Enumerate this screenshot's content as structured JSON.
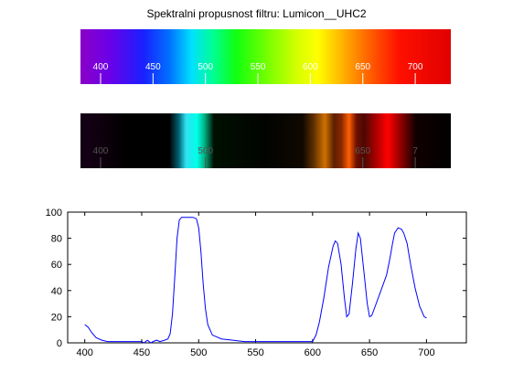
{
  "title": "Spektralni propusnost filtru: Lumicon__UHC2",
  "spectrum_ticks": [
    "400",
    "450",
    "500",
    "550",
    "600",
    "650",
    "700"
  ],
  "filtered_ticks": [
    "400",
    "500",
    "650",
    "7"
  ],
  "chart_data": {
    "type": "line",
    "title": "Spektralni propusnost filtru: Lumicon__UHC2",
    "xlabel": "",
    "ylabel": "",
    "xlim": [
      385,
      735
    ],
    "ylim": [
      0,
      100
    ],
    "xticks": [
      400,
      450,
      500,
      550,
      600,
      650,
      700
    ],
    "yticks": [
      0,
      20,
      40,
      60,
      80,
      100
    ],
    "grid": false,
    "series": [
      {
        "color": "#0000ff",
        "x": [
          400,
          403,
          406,
          410,
          415,
          420,
          430,
          440,
          450,
          452,
          455,
          458,
          460,
          463,
          466,
          470,
          473,
          475,
          477,
          479,
          481,
          483,
          485,
          490,
          495,
          498,
          500,
          502,
          504,
          506,
          508,
          512,
          520,
          530,
          540,
          550,
          560,
          570,
          580,
          590,
          600,
          603,
          606,
          610,
          614,
          618,
          620,
          622,
          625,
          628,
          630,
          632,
          635,
          638,
          640,
          642,
          645,
          648,
          650,
          652,
          655,
          660,
          665,
          668,
          670,
          672,
          675,
          678,
          680,
          683,
          686,
          690,
          694,
          698,
          700
        ],
        "y": [
          14,
          12,
          8,
          4,
          2,
          1,
          1,
          1,
          1,
          0,
          2,
          0,
          1,
          2,
          1,
          2,
          3,
          7,
          22,
          50,
          80,
          94,
          96,
          96,
          96,
          95,
          88,
          70,
          45,
          26,
          14,
          6,
          3,
          2,
          1,
          1,
          1,
          1,
          1,
          1,
          1,
          6,
          16,
          35,
          58,
          74,
          78,
          76,
          60,
          34,
          20,
          22,
          45,
          72,
          84,
          80,
          55,
          30,
          20,
          21,
          28,
          40,
          52,
          65,
          75,
          84,
          88,
          87,
          84,
          76,
          60,
          42,
          28,
          20,
          19
        ]
      }
    ]
  }
}
